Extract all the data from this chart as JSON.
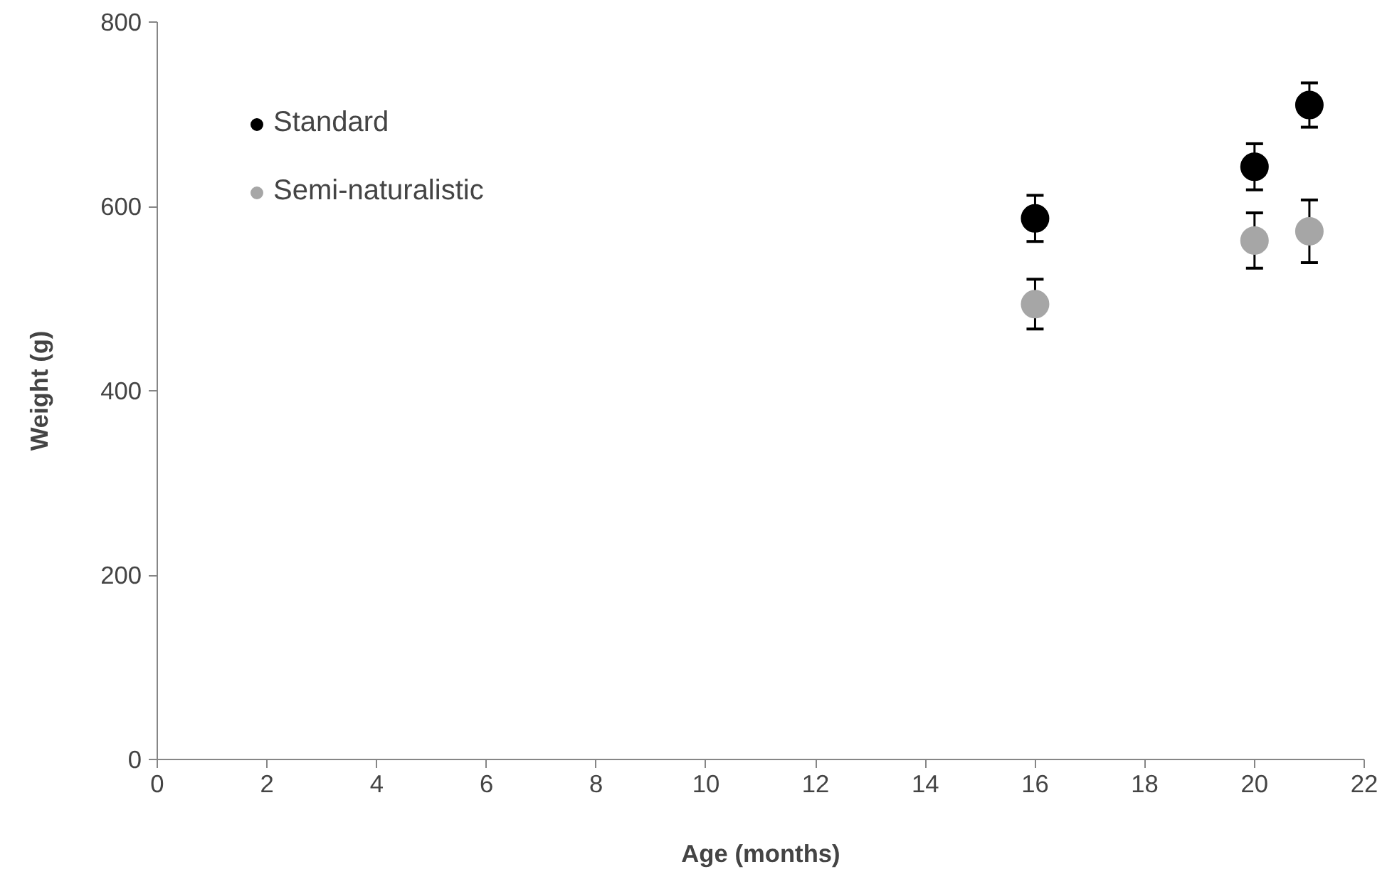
{
  "chart_data": {
    "type": "scatter",
    "xlabel": "Age (months)",
    "ylabel": "Weight (g)",
    "x": [
      16,
      20,
      21
    ],
    "series": [
      {
        "name": "Standard",
        "color": "#000000",
        "values": [
          587,
          643,
          710
        ],
        "errors": [
          25,
          25,
          24
        ]
      },
      {
        "name": "Semi-naturalistic",
        "color": "#a6a6a6",
        "values": [
          494,
          563,
          573
        ],
        "errors": [
          27,
          30,
          34
        ]
      }
    ],
    "xlim": [
      0,
      22
    ],
    "xticks": [
      0,
      2,
      4,
      6,
      8,
      10,
      12,
      14,
      16,
      18,
      20,
      22
    ],
    "ylim": [
      0,
      800
    ],
    "yticks": [
      0,
      200,
      400,
      600,
      800
    ],
    "grid": false,
    "legend": "top left",
    "marker": "circle"
  }
}
